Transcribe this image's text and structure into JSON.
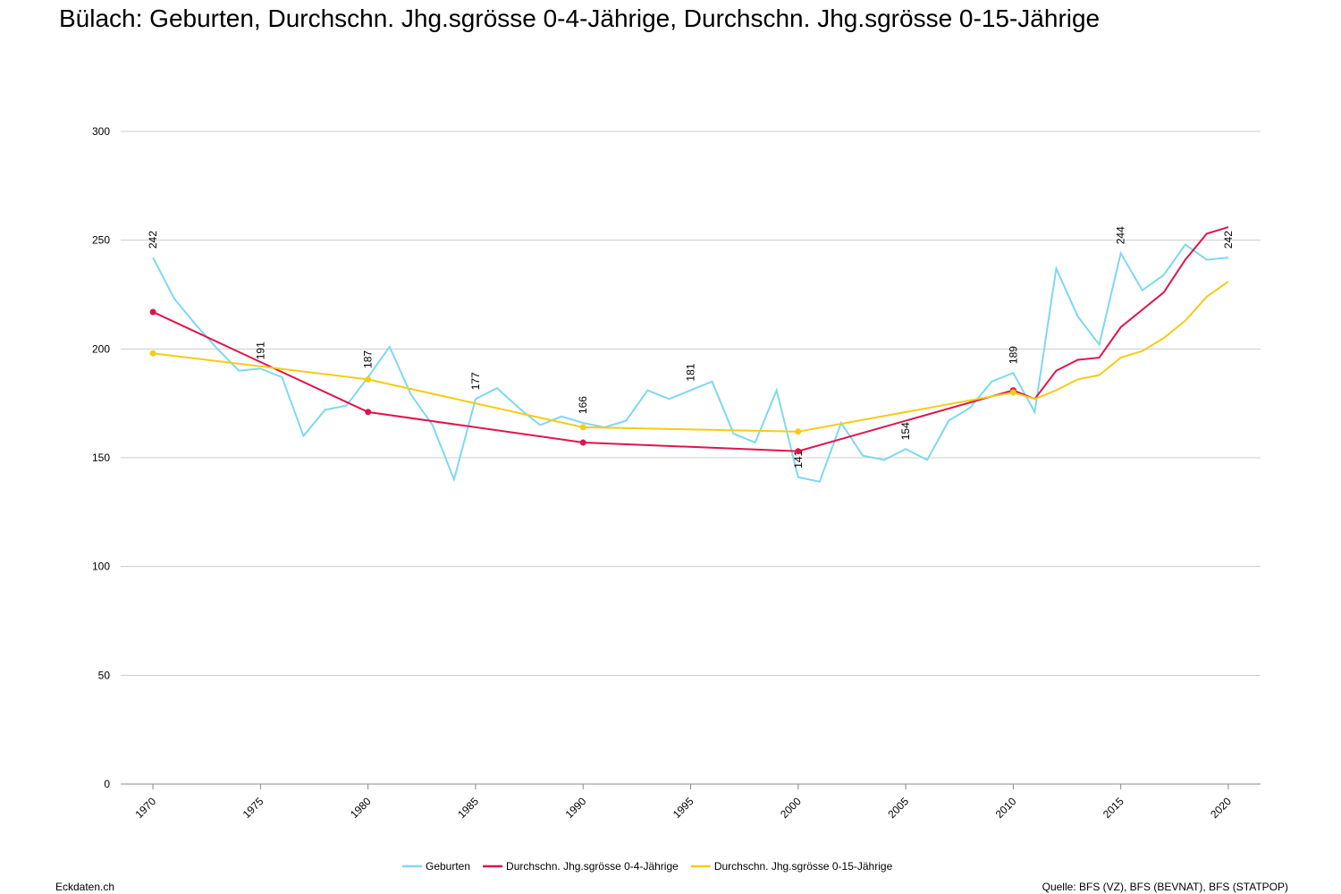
{
  "chart_data": {
    "type": "line",
    "title": "Bülach: Geburten, Durchschn. Jhg.sgrösse 0-4-Jährige, Durchschn. Jhg.sgrösse 0-15-Jährige",
    "series": [
      {
        "name": "Geburten",
        "color": "#7dd8f5",
        "x": [
          1970,
          1971,
          1972,
          1973,
          1974,
          1975,
          1976,
          1977,
          1978,
          1979,
          1980,
          1981,
          1982,
          1983,
          1984,
          1985,
          1986,
          1987,
          1988,
          1989,
          1990,
          1991,
          1992,
          1993,
          1994,
          1995,
          1996,
          1997,
          1998,
          1999,
          2000,
          2001,
          2002,
          2003,
          2004,
          2005,
          2006,
          2007,
          2008,
          2009,
          2010,
          2011,
          2012,
          2013,
          2014,
          2015,
          2016,
          2017,
          2018,
          2019,
          2020
        ],
        "values": [
          242,
          223,
          211,
          200,
          190,
          191,
          187,
          160,
          172,
          174,
          187,
          201,
          179,
          165,
          140,
          177,
          182,
          173,
          165,
          169,
          166,
          164,
          167,
          181,
          177,
          181,
          185,
          161,
          157,
          181,
          141,
          139,
          166,
          151,
          149,
          154,
          149,
          167,
          173,
          185,
          189,
          171,
          237,
          215,
          202,
          244,
          227,
          234,
          248,
          241,
          242
        ]
      },
      {
        "name": "Durchschn. Jhg.sgrösse 0-4-Jährige",
        "color": "#e0144c",
        "x": [
          1970,
          1980,
          1990,
          2000,
          2010,
          2011,
          2012,
          2013,
          2014,
          2015,
          2016,
          2017,
          2018,
          2019,
          2020
        ],
        "values": [
          217,
          171,
          157,
          153,
          181,
          177,
          190,
          195,
          196,
          210,
          218,
          226,
          241,
          253,
          256
        ]
      },
      {
        "name": "Durchschn. Jhg.sgrösse 0-15-Jährige",
        "color": "#f5cc14",
        "x": [
          1970,
          1980,
          1990,
          2000,
          2010,
          2011,
          2012,
          2013,
          2014,
          2015,
          2016,
          2017,
          2018,
          2019,
          2020
        ],
        "values": [
          198,
          186,
          164,
          162,
          180,
          177,
          181,
          186,
          188,
          196,
          199,
          205,
          213,
          224,
          231
        ]
      }
    ],
    "xlim": [
      1968.5,
      2021.5
    ],
    "xticks": [
      1970,
      1975,
      1980,
      1985,
      1990,
      1995,
      2000,
      2005,
      2010,
      2015,
      2020
    ],
    "ylim": [
      0,
      300
    ],
    "yticks": [
      0,
      50,
      100,
      150,
      200,
      250,
      300
    ],
    "grid": true,
    "legend": "bottom",
    "footer_left": "Eckdaten.ch",
    "footer_right": "Quelle: BFS (VZ), BFS (BEVNAT), BFS (STATPOP)"
  }
}
